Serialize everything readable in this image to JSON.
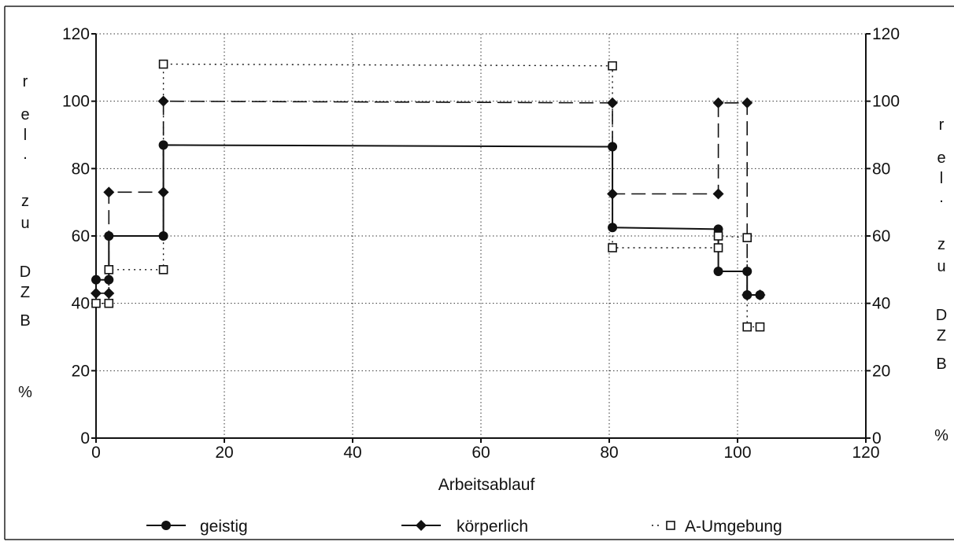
{
  "chart_data": {
    "type": "line",
    "xlabel": "Arbeitsablauf",
    "ylabel_left": [
      "r",
      "e",
      "l",
      ".",
      "z",
      "u",
      "D",
      "Z",
      "B",
      "%"
    ],
    "ylabel_right": [
      "r",
      "e",
      "l",
      ".",
      "z",
      "u",
      "D",
      "Z",
      "B",
      "%"
    ],
    "xlim": [
      0,
      120
    ],
    "ylim": [
      0,
      120
    ],
    "x_ticks": [
      "0",
      "20",
      "40",
      "60",
      "80",
      "100",
      "120"
    ],
    "y_ticks": [
      "0",
      "20",
      "40",
      "60",
      "80",
      "100",
      "120"
    ],
    "grid": true,
    "legend_position": "bottom",
    "series": [
      {
        "name": "geistig",
        "marker": "circle",
        "line": "solid",
        "points": [
          [
            0,
            47
          ],
          [
            2,
            47
          ],
          [
            2,
            60
          ],
          [
            10.5,
            60
          ],
          [
            10.5,
            87
          ],
          [
            80.5,
            86.5
          ],
          [
            80.5,
            62.5
          ],
          [
            97,
            62
          ],
          [
            97,
            49.5
          ],
          [
            101.5,
            49.5
          ],
          [
            101.5,
            42.5
          ],
          [
            103.5,
            42.5
          ]
        ]
      },
      {
        "name": "körperlich",
        "marker": "diamond",
        "line": "dashed",
        "points": [
          [
            0,
            43
          ],
          [
            2,
            43
          ],
          [
            2,
            73
          ],
          [
            10.5,
            73
          ],
          [
            10.5,
            100
          ],
          [
            80.5,
            99.5
          ],
          [
            80.5,
            72.5
          ],
          [
            97,
            72.5
          ],
          [
            97,
            99.5
          ],
          [
            101.5,
            99.5
          ],
          [
            101.5,
            42.5
          ],
          [
            103.5,
            42.5
          ]
        ]
      },
      {
        "name": "A-Umgebung",
        "marker": "square-open",
        "line": "dotted",
        "points": [
          [
            0,
            40
          ],
          [
            2,
            40
          ],
          [
            2,
            50
          ],
          [
            10.5,
            50
          ],
          [
            10.5,
            111
          ],
          [
            80.5,
            110.5
          ],
          [
            80.5,
            56.5
          ],
          [
            97,
            56.5
          ],
          [
            97,
            60
          ],
          [
            101.5,
            59.5
          ],
          [
            101.5,
            33
          ],
          [
            103.5,
            33
          ]
        ]
      }
    ]
  }
}
